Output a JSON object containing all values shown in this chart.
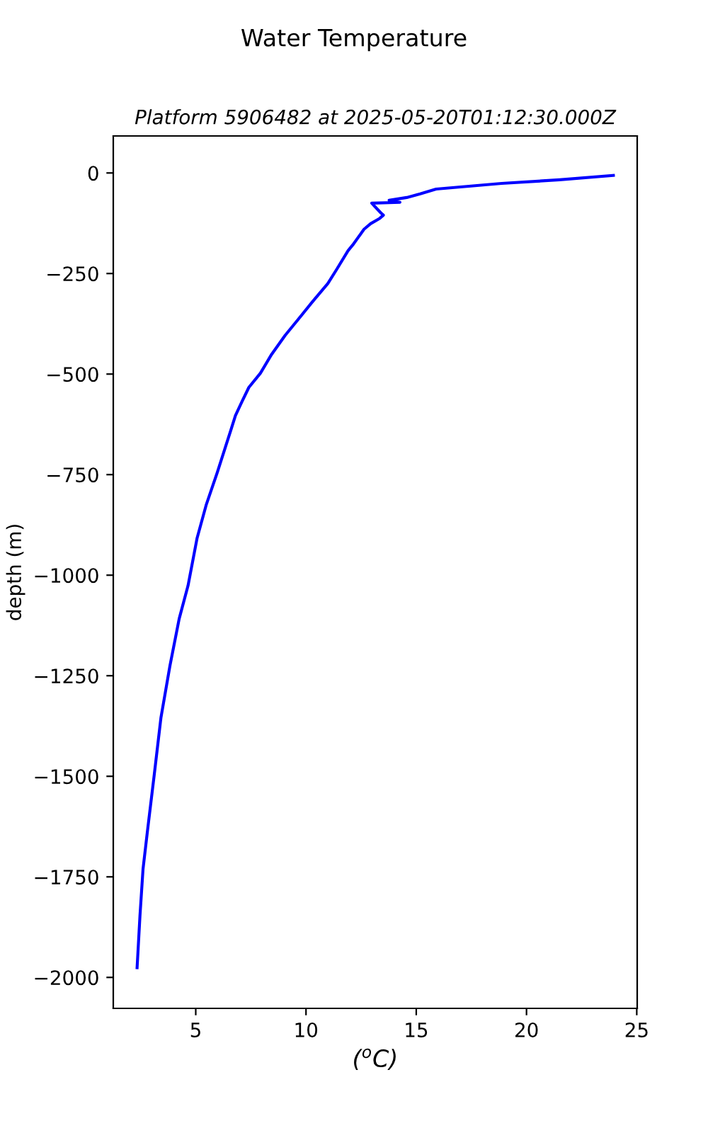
{
  "chart_data": {
    "type": "line",
    "title": "Water Temperature",
    "subtitle": "Platform 5906482 at 2025-05-20T01:12:30.000Z",
    "xlabel": "($^{o}$C)",
    "ylabel": "depth (m)",
    "series": [
      {
        "color": "#0000ff",
        "x": [
          23.94,
          21.5,
          18.87,
          15.9,
          15.18,
          14.57,
          13.77,
          14.26,
          12.98,
          13.39,
          13.51,
          13.34,
          12.93,
          12.63,
          12.12,
          11.91,
          11.4,
          10.99,
          10.28,
          9.66,
          9.05,
          8.44,
          7.93,
          7.41,
          7.1,
          6.8,
          6.6,
          5.98,
          5.47,
          5.06,
          4.65,
          4.25,
          3.83,
          3.42,
          3.12,
          2.81,
          2.61,
          2.47,
          2.34
        ],
        "values": [
          -6,
          -17,
          -26,
          -40,
          -52,
          -61,
          -68,
          -73,
          -75,
          -99,
          -105,
          -113,
          -126,
          -140,
          -179,
          -193,
          -239,
          -275,
          -321,
          -363,
          -404,
          -451,
          -498,
          -533,
          -568,
          -603,
          -638,
          -744,
          -826,
          -908,
          -1026,
          -1108,
          -1225,
          -1355,
          -1495,
          -1636,
          -1730,
          -1847,
          -1976
        ]
      }
    ],
    "xlim": [
      1.26,
      25.02
    ],
    "ylim": [
      -2077,
      92
    ],
    "xticks": [
      5,
      10,
      15,
      20,
      25
    ],
    "yticks": [
      {
        "value": 0,
        "label": "0"
      },
      {
        "value": -250,
        "label": "−250"
      },
      {
        "value": -500,
        "label": "−500"
      },
      {
        "value": -750,
        "label": "−750"
      },
      {
        "value": -1000,
        "label": "−1000"
      },
      {
        "value": -1250,
        "label": "−1250"
      },
      {
        "value": -1500,
        "label": "−1500"
      },
      {
        "value": -1750,
        "label": "−1750"
      },
      {
        "value": -2000,
        "label": "−2000"
      }
    ],
    "grid": false,
    "legend": false,
    "line_style": "solid",
    "marker": "none"
  }
}
